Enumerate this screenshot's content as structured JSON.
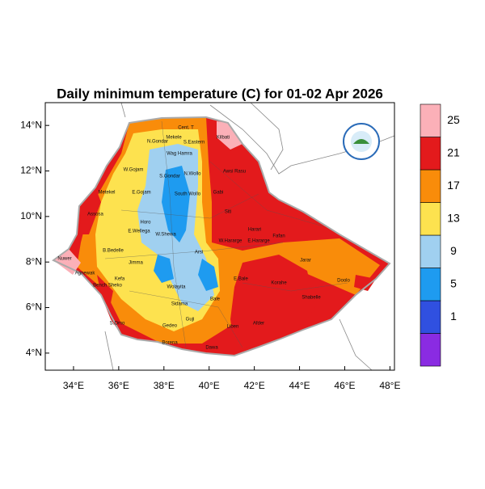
{
  "chart_data": {
    "type": "map",
    "title": "Daily minimum temperature (C) for 01-02 Apr 2026",
    "xlim": [
      32.75,
      48.2
    ],
    "ylim": [
      3.25,
      15
    ],
    "xticks": [
      {
        "value": 34,
        "label": "34°E"
      },
      {
        "value": 36,
        "label": "36°E"
      },
      {
        "value": 38,
        "label": "38°E"
      },
      {
        "value": 40,
        "label": "40°E"
      },
      {
        "value": 42,
        "label": "42°E"
      },
      {
        "value": 44,
        "label": "44°E"
      },
      {
        "value": 46,
        "label": "46°E"
      },
      {
        "value": 48,
        "label": "48°E"
      }
    ],
    "yticks": [
      {
        "value": 4,
        "label": "4°N"
      },
      {
        "value": 6,
        "label": "6°N"
      },
      {
        "value": 8,
        "label": "8°N"
      },
      {
        "value": 10,
        "label": "10°N"
      },
      {
        "value": 12,
        "label": "12°N"
      },
      {
        "value": 14,
        "label": "14°N"
      }
    ],
    "colorbar": {
      "levels": [
        1,
        5,
        9,
        13,
        17,
        21,
        25
      ],
      "colors": [
        "#8a2be2",
        "#3050e0",
        "#1e9bf0",
        "#a0d0f0",
        "#fde24f",
        "#f98c0a",
        "#e31a1c",
        "#fbb0b8"
      ]
    },
    "zones": [
      "Mekele",
      "S.Eastern",
      "Cent. T",
      "N.Gondar",
      "Wag Hamra",
      "Kilbati",
      "S.Gondar",
      "N.Wollo",
      "Awsi Rasu",
      "W.Gojam",
      "Metekel",
      "E.Gojam",
      "South Wollo",
      "Gabi",
      "Assosa",
      "Horo",
      "E.Wellega",
      "W.Shewa",
      "Siti",
      "W.Hararge",
      "E.Hararge",
      "Fafan",
      "Harari",
      "B.Bedelle",
      "Jimma",
      "Arsi",
      "Jarar",
      "Kefa",
      "Bench Sheko",
      "Agnewak",
      "Nuwer",
      "Wolayita",
      "Sidama",
      "E.Bale",
      "Korahe",
      "Doolo",
      "Bale",
      "Gedeo",
      "Shabelle",
      "S.Omo",
      "Guji",
      "Afder",
      "Liben",
      "Borena",
      "Dawa"
    ]
  }
}
